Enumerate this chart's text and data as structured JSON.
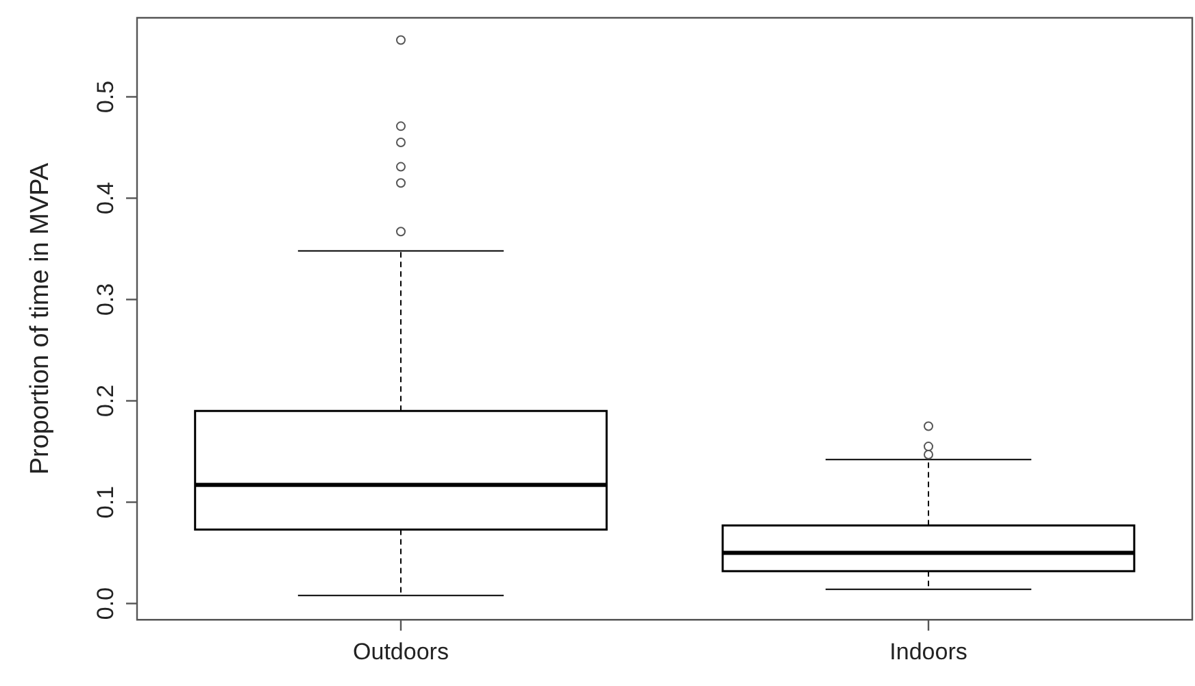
{
  "chart_data": {
    "type": "box",
    "ylabel": "Proportion of time in MVPA",
    "categories": [
      "Outdoors",
      "Indoors"
    ],
    "color": "#000000",
    "boxes": [
      {
        "low": 0.008,
        "q1": 0.073,
        "median": 0.117,
        "q3": 0.19,
        "high": 0.348,
        "outliers": [
          0.556,
          0.471,
          0.455,
          0.431,
          0.415,
          0.367
        ]
      },
      {
        "low": 0.014,
        "q1": 0.032,
        "median": 0.05,
        "q3": 0.077,
        "high": 0.142,
        "outliers": [
          0.175,
          0.155,
          0.147
        ]
      }
    ],
    "ylim": [
      -0.016,
      0.578
    ],
    "yticks": [
      {
        "value": 0,
        "label": "0.0"
      },
      {
        "value": 0.1,
        "label": "0.1"
      },
      {
        "value": 0.2,
        "label": "0.2"
      },
      {
        "value": 0.3,
        "label": "0.3"
      },
      {
        "value": 0.4,
        "label": "0.4"
      },
      {
        "value": 0.5,
        "label": "0.5"
      }
    ],
    "grid": false
  }
}
